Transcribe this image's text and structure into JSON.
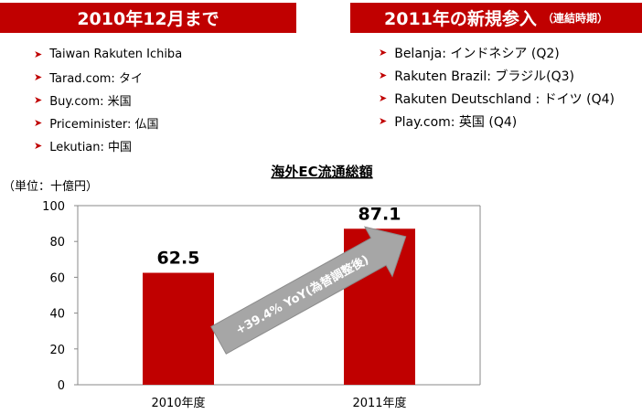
{
  "banners": {
    "left_title": "2010年12月まで",
    "right_title": "2011年の新規参入",
    "right_subtitle": "（連結時期）"
  },
  "left_list": [
    {
      "text": "Taiwan Rakuten Ichiba",
      "icon": "arrow-right-icon"
    },
    {
      "text": "Tarad.com: タイ",
      "icon": "arrow-right-icon"
    },
    {
      "text": "Buy.com: 米国",
      "icon": "arrow-right-icon"
    },
    {
      "text": "Priceminister: 仏国",
      "icon": "arrow-right-icon"
    },
    {
      "text": "Lekutian: 中国",
      "icon": "arrow-right-icon"
    }
  ],
  "right_list": [
    {
      "text": "Belanja: インドネシア (Q2)",
      "icon": "arrow-right-icon"
    },
    {
      "text": "Rakuten Brazil: ブラジル(Q3)",
      "icon": "arrow-right-icon"
    },
    {
      "text": "Rakuten Deutschland : ドイツ (Q4)",
      "icon": "arrow-right-icon"
    },
    {
      "text": "Play.com: 英国 (Q4)",
      "icon": "arrow-right-icon"
    }
  ],
  "chart_data": {
    "type": "bar",
    "title": "海外EC流通総額",
    "unit_label": "（単位：十億円）",
    "categories": [
      "2010年度",
      "2011年度"
    ],
    "values": [
      62.5,
      87.1
    ],
    "value_labels": [
      "62.5",
      "87.1"
    ],
    "ylim": [
      0,
      100
    ],
    "yticks": [
      0,
      20,
      40,
      60,
      80,
      100
    ],
    "grid": false,
    "annotation": "+39.4% YoY(為替調整後)",
    "colors": {
      "bar": "#c00000",
      "arrow": "#a6a6a6",
      "accent": "#c00000"
    }
  }
}
